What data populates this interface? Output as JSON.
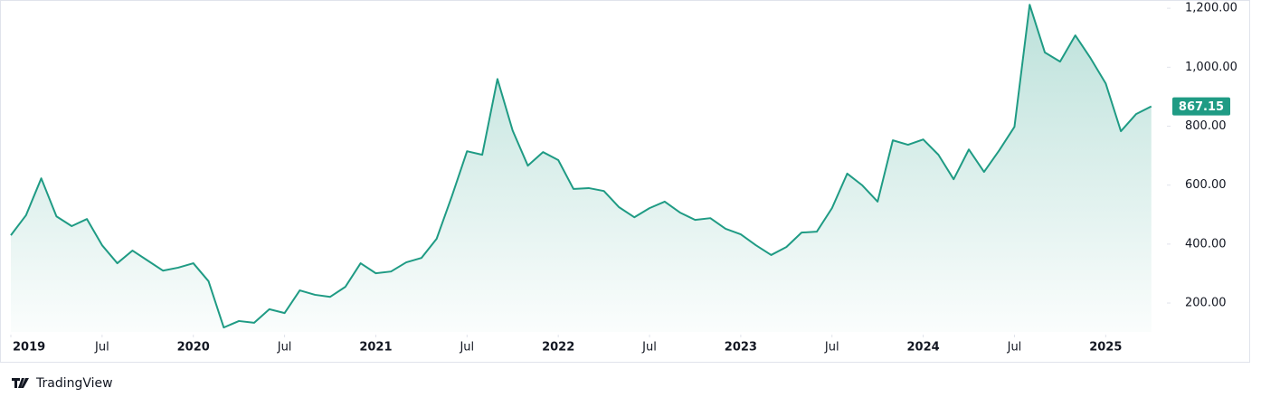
{
  "chart_data": {
    "type": "area",
    "color": "#1f9b84",
    "values": [
      430,
      498,
      623,
      494,
      461,
      485,
      396,
      335,
      378,
      344,
      310,
      320,
      335,
      274,
      117,
      139,
      133,
      179,
      166,
      243,
      228,
      221,
      255,
      335,
      301,
      307,
      338,
      353,
      418,
      562,
      715,
      703,
      960,
      785,
      666,
      712,
      685,
      587,
      590,
      580,
      525,
      491,
      522,
      544,
      507,
      482,
      488,
      452,
      433,
      396,
      363,
      390,
      439,
      442,
      522,
      639,
      599,
      544,
      752,
      737,
      755,
      703,
      620,
      721,
      645,
      718,
      798,
      1212,
      1050,
      1019,
      1108,
      1031,
      945,
      783,
      841,
      867.15
    ],
    "ylim": [
      102,
      1228
    ],
    "yticks": [
      {
        "value": 200,
        "label": "200.00"
      },
      {
        "value": 400,
        "label": "400.00"
      },
      {
        "value": 600,
        "label": "600.00"
      },
      {
        "value": 800,
        "label": "800.00"
      },
      {
        "value": 1000,
        "label": "1,000.00"
      },
      {
        "value": 1200,
        "label": "1,200.00"
      }
    ],
    "xticks": [
      {
        "value": 0,
        "label": "2019"
      },
      {
        "value": 6,
        "label": "Jul"
      },
      {
        "value": 12,
        "label": "2020"
      },
      {
        "value": 18,
        "label": "Jul"
      },
      {
        "value": 24,
        "label": "2021"
      },
      {
        "value": 30,
        "label": "Jul"
      },
      {
        "value": 36,
        "label": "2022"
      },
      {
        "value": 42,
        "label": "Jul"
      },
      {
        "value": 48,
        "label": "2023"
      },
      {
        "value": 54,
        "label": "Jul"
      },
      {
        "value": 60,
        "label": "2024"
      },
      {
        "value": 66,
        "label": "Jul"
      },
      {
        "value": 72,
        "label": "2025"
      }
    ]
  },
  "logo": "TradingView"
}
